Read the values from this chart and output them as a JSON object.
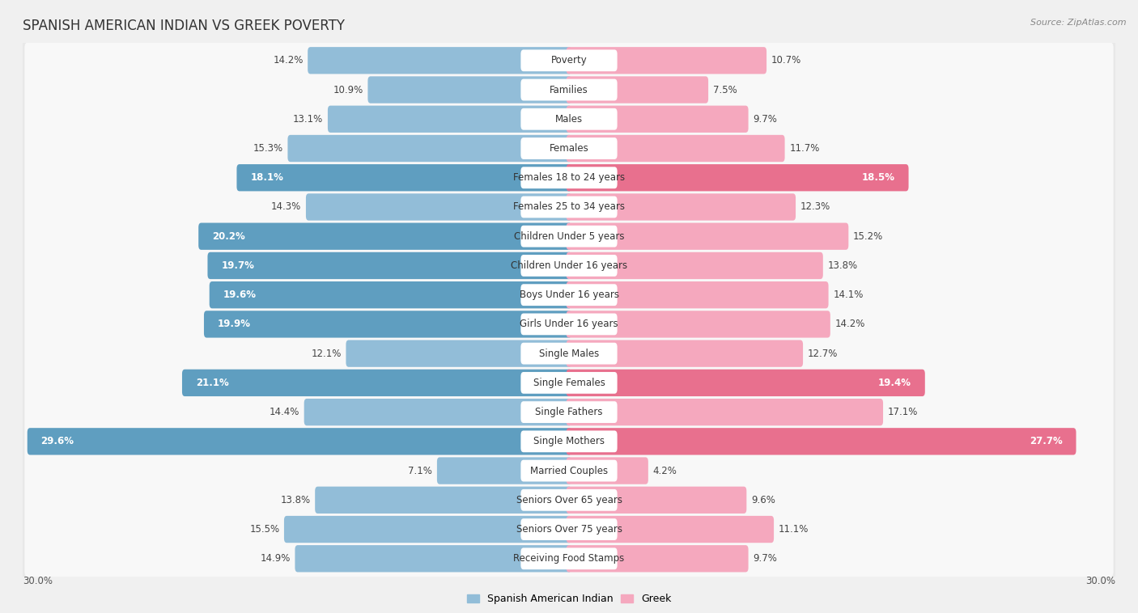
{
  "title": "SPANISH AMERICAN INDIAN VS GREEK POVERTY",
  "source": "Source: ZipAtlas.com",
  "categories": [
    "Poverty",
    "Families",
    "Males",
    "Females",
    "Females 18 to 24 years",
    "Females 25 to 34 years",
    "Children Under 5 years",
    "Children Under 16 years",
    "Boys Under 16 years",
    "Girls Under 16 years",
    "Single Males",
    "Single Females",
    "Single Fathers",
    "Single Mothers",
    "Married Couples",
    "Seniors Over 65 years",
    "Seniors Over 75 years",
    "Receiving Food Stamps"
  ],
  "left_values": [
    14.2,
    10.9,
    13.1,
    15.3,
    18.1,
    14.3,
    20.2,
    19.7,
    19.6,
    19.9,
    12.1,
    21.1,
    14.4,
    29.6,
    7.1,
    13.8,
    15.5,
    14.9
  ],
  "right_values": [
    10.7,
    7.5,
    9.7,
    11.7,
    18.5,
    12.3,
    15.2,
    13.8,
    14.1,
    14.2,
    12.7,
    19.4,
    17.1,
    27.7,
    4.2,
    9.6,
    11.1,
    9.7
  ],
  "left_color_default": "#92bdd8",
  "left_color_highlight": "#5f9ec0",
  "right_color_default": "#f5a8be",
  "right_color_highlight": "#e8708e",
  "highlight_threshold": 18.0,
  "xlim": 30.0,
  "legend_left": "Spanish American Indian",
  "legend_right": "Greek",
  "bg_color": "#f0f0f0",
  "row_bg_color": "#e8e8e8",
  "row_inner_color": "#f8f8f8",
  "title_fontsize": 12,
  "label_fontsize": 8.5,
  "bar_height": 0.62
}
